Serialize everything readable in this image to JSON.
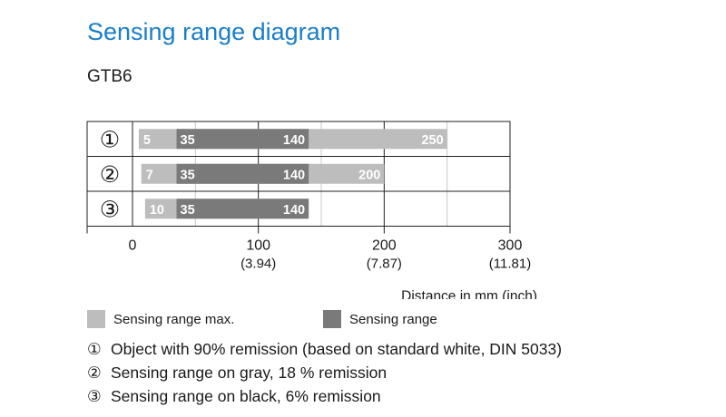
{
  "title": "Sensing range diagram",
  "subtitle": "GTB6",
  "colors": {
    "max": "#bdbdbd",
    "range": "#7a7a7a",
    "title": "#1a7ec8"
  },
  "legend": [
    {
      "label": "Sensing range max.",
      "color": "#bdbdbd"
    },
    {
      "label": "Sensing range",
      "color": "#7a7a7a"
    }
  ],
  "notes": [
    {
      "num": "①",
      "text": "Object with 90% remission (based on standard white, DIN 5033)"
    },
    {
      "num": "②",
      "text": "Sensing range on gray, 18 % remission"
    },
    {
      "num": "③",
      "text": "Sensing range on black, 6% remission"
    }
  ],
  "chart_data": {
    "type": "bar",
    "orientation": "horizontal-range",
    "xlim": [
      0,
      300
    ],
    "xlabel": "Distance in mm (inch)",
    "x_ticks": [
      {
        "value": 0,
        "label": "0",
        "sublabel": ""
      },
      {
        "value": 100,
        "label": "100",
        "sublabel": "(3.94)"
      },
      {
        "value": 200,
        "label": "200",
        "sublabel": "(7.87)"
      },
      {
        "value": 300,
        "label": "300",
        "sublabel": "(11.81)"
      }
    ],
    "grid": true,
    "rows": [
      {
        "label": "①",
        "max_start": 5,
        "range_start": 35,
        "range_end": 140,
        "max_end": 250
      },
      {
        "label": "②",
        "max_start": 7,
        "range_start": 35,
        "range_end": 140,
        "max_end": 200
      },
      {
        "label": "③",
        "max_start": 10,
        "range_start": 35,
        "range_end": 140,
        "max_end": 140
      }
    ]
  }
}
